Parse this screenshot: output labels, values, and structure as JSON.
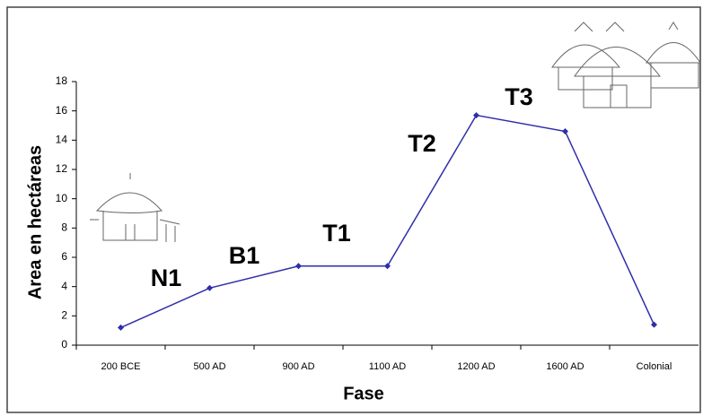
{
  "chart_data": {
    "type": "line",
    "x_label": "Fase",
    "y_label": "Area en hectáreas",
    "categories": [
      "200 BCE",
      "500  AD",
      "900 AD",
      "1100 AD",
      "1200 AD",
      "1600 AD",
      "Colonial"
    ],
    "series": [
      {
        "color": "#2e2eaa",
        "values": [
          1.2,
          3.9,
          5.4,
          5.4,
          15.7,
          14.6,
          1.4
        ]
      }
    ],
    "ylim": [
      0,
      18
    ],
    "yticks": [
      0,
      2,
      4,
      6,
      8,
      10,
      12,
      14,
      16,
      18
    ],
    "grid": false,
    "annotations": [
      "N1",
      "B1",
      "T1",
      "T2",
      "T3"
    ]
  }
}
